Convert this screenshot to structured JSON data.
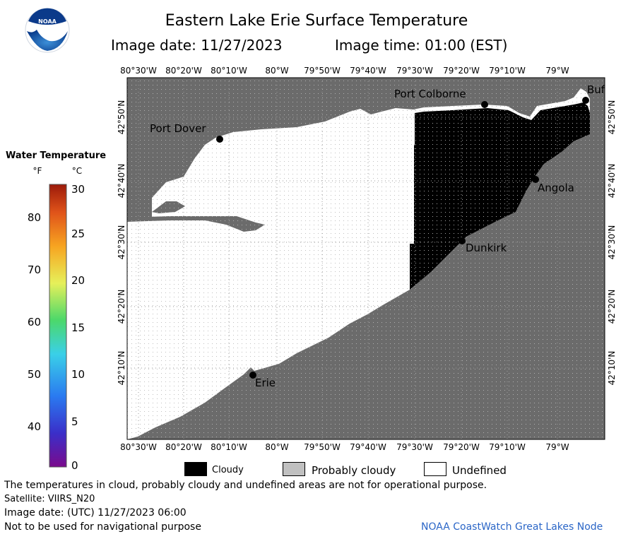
{
  "header": {
    "title": "Eastern Lake Erie Surface Temperature",
    "image_date": "Image date: 11/27/2023",
    "image_time": "Image time: 01:00 (EST)"
  },
  "logo": {
    "text": "NOAA"
  },
  "colorbar": {
    "title": "Water Temperature",
    "unit_f": "°F",
    "unit_c": "°C",
    "f_ticks": [
      "80",
      "70",
      "60",
      "50",
      "40"
    ],
    "c_ticks": [
      "30",
      "25",
      "20",
      "15",
      "10",
      "5",
      "0"
    ],
    "range_c": [
      0,
      30
    ],
    "stops": [
      "#7a0a8c",
      "#3a2fc9",
      "#2a7af0",
      "#3ad0e8",
      "#4cd86a",
      "#e6f05a",
      "#f7a521",
      "#e0541a",
      "#9c1a0a"
    ]
  },
  "map": {
    "lon_labels": [
      "80°30'W",
      "80°20'W",
      "80°10'W",
      "80°W",
      "79°50'W",
      "79°40'W",
      "79°30'W",
      "79°20'W",
      "79°10'W",
      "79°W"
    ],
    "lat_labels": [
      "42°50'N",
      "42°40'N",
      "42°30'N",
      "42°20'N",
      "42°10'N"
    ],
    "places": [
      "Port Dover",
      "Port Colborne",
      "Buf",
      "Angola",
      "Dunkirk",
      "Erie"
    ],
    "colors": {
      "land": "#6b6b6b",
      "cloud": "#000000",
      "undefined": "#ffffff",
      "probably_cloudy": "#c0c0c0"
    }
  },
  "legend": {
    "cloudy": "Cloudy",
    "probably_cloudy": "Probably cloudy",
    "undefined": "Undefined"
  },
  "footer": {
    "note": "The temperatures in cloud, probably cloudy and undefined areas are not for operational purpose.",
    "satellite": "Satellite: VIIRS_N20",
    "utc_date": "Image date: (UTC) 11/27/2023  06:00",
    "nav_warning": "Not to be used for navigational purpose",
    "credit": "NOAA CoastWatch Great Lakes Node"
  }
}
